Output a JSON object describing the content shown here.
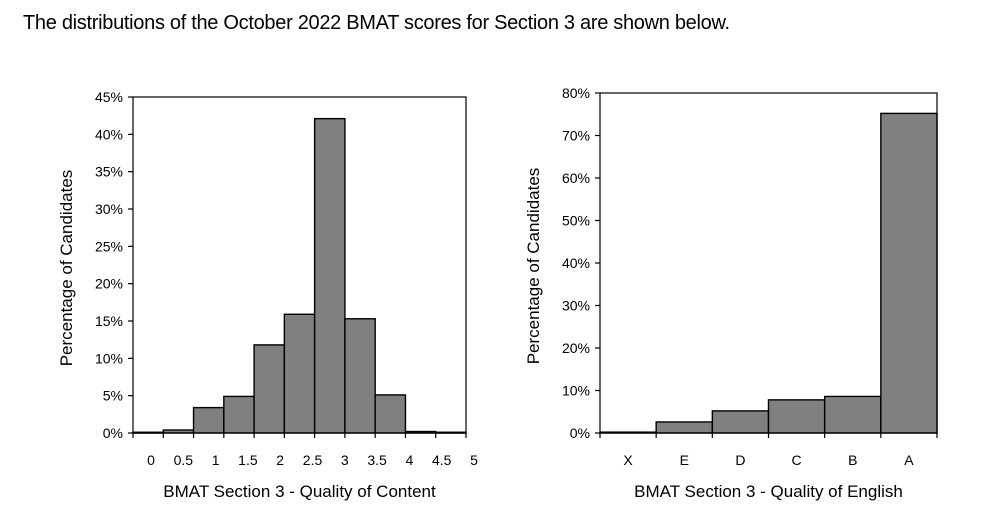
{
  "heading": "The distributions of the October 2022 BMAT scores for Section 3 are shown below.",
  "chart_data": [
    {
      "type": "bar",
      "xlabel": "BMAT Section 3 - Quality of Content",
      "ylabel": "Percentage of Candidates",
      "ylim": [
        0,
        45
      ],
      "yticks": [
        "0%",
        "5%",
        "10%",
        "15%",
        "20%",
        "25%",
        "30%",
        "35%",
        "40%",
        "45%"
      ],
      "ytick_values": [
        0,
        5,
        10,
        15,
        20,
        25,
        30,
        35,
        40,
        45
      ],
      "xtick_labels": [
        "0",
        "0.5",
        "1",
        "1.5",
        "2",
        "2.5",
        "3",
        "3.5",
        "4",
        "4.5",
        "5"
      ],
      "categories": [
        "0",
        "0.5",
        "1",
        "1.5",
        "2",
        "2.5",
        "3",
        "3.5",
        "4",
        "4.5",
        "5"
      ],
      "values": [
        0.1,
        0.4,
        3.4,
        4.9,
        11.8,
        15.9,
        42.1,
        15.3,
        5.1,
        0.2,
        0.1
      ],
      "bar_color": "#808080",
      "grid": false
    },
    {
      "type": "bar",
      "xlabel": "BMAT Section 3 - Quality of English",
      "ylabel": "Percentage of Candidates",
      "ylim": [
        0,
        80
      ],
      "yticks": [
        "0%",
        "10%",
        "20%",
        "30%",
        "40%",
        "50%",
        "60%",
        "70%",
        "80%"
      ],
      "ytick_values": [
        0,
        10,
        20,
        30,
        40,
        50,
        60,
        70,
        80
      ],
      "categories": [
        "X",
        "E",
        "D",
        "C",
        "B",
        "A"
      ],
      "values": [
        0.2,
        2.6,
        5.2,
        7.8,
        8.6,
        75.2
      ],
      "bar_color": "#808080",
      "grid": false
    }
  ]
}
